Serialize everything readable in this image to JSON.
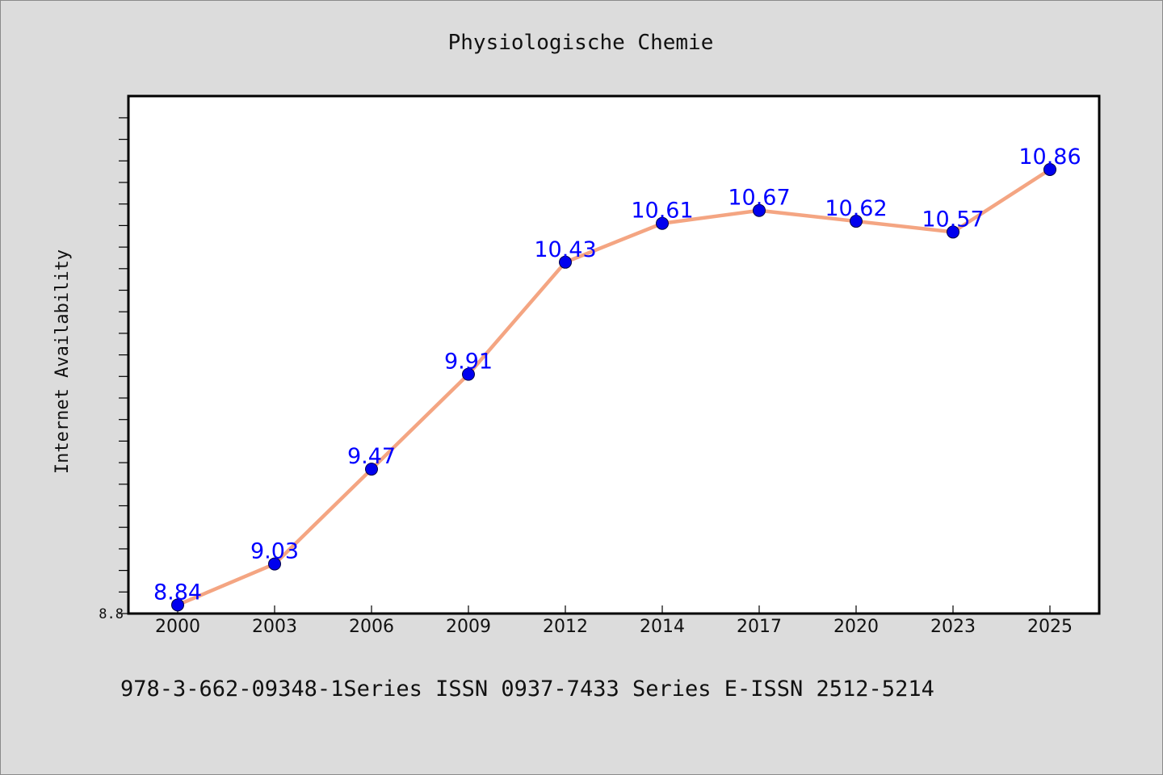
{
  "colors": {
    "background": "#dcdcdc",
    "plot_background": "#ffffff",
    "line": "#f4a582",
    "marker": "#0000ee",
    "label": "#0000ff"
  },
  "footer": {
    "text": "978-3-662-09348-1Series ISSN 0937-7433 Series E-ISSN 2512-5214"
  },
  "chart_data": {
    "type": "line",
    "title": "Physiologische Chemie",
    "xlabel": "",
    "ylabel": "Internet Availability",
    "categories": [
      "2000",
      "2003",
      "2006",
      "2009",
      "2012",
      "2014",
      "2017",
      "2020",
      "2023",
      "2025"
    ],
    "series": [
      {
        "values": [
          8.84,
          9.03,
          9.47,
          9.91,
          10.43,
          10.61,
          10.67,
          10.62,
          10.57,
          10.86
        ]
      }
    ],
    "data_labels": [
      "8.84",
      "9.03",
      "9.47",
      "9.91",
      "10.43",
      "10.61",
      "10.67",
      "10.62",
      "10.57",
      "10.86"
    ],
    "y_tick_labels": [
      "8.8"
    ],
    "ylim": [
      8.8,
      11.2
    ],
    "y_minor_tick_step": 0.1,
    "grid": false,
    "legend": "none"
  }
}
